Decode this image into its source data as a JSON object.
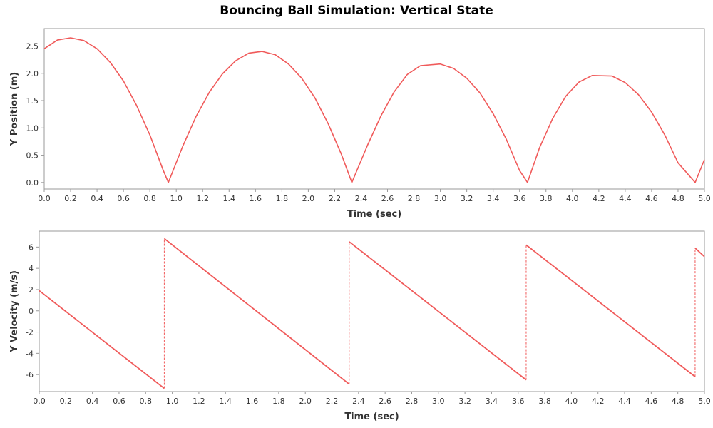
{
  "figure": {
    "title": "Bouncing Ball Simulation: Vertical State"
  },
  "colors": {
    "series": "#f05a5a",
    "frame": "#9a9a9a",
    "background": "#ffffff"
  },
  "chart_data": [
    {
      "type": "line",
      "title": "Bouncing Ball Simulation: Vertical State",
      "xlabel": "Time (sec)",
      "ylabel": "Y Position (m)",
      "xlim": [
        0,
        5.0
      ],
      "ylim": [
        -0.12,
        2.82
      ],
      "grid": false,
      "x_ticks": [
        "0.0",
        "0.2",
        "0.4",
        "0.6",
        "0.8",
        "1.0",
        "1.2",
        "1.4",
        "1.6",
        "1.8",
        "2.0",
        "2.2",
        "2.4",
        "2.6",
        "2.8",
        "3.0",
        "3.2",
        "3.4",
        "3.6",
        "3.8",
        "4.0",
        "4.2",
        "4.4",
        "4.6",
        "4.8",
        "5.0"
      ],
      "y_ticks": [
        "0.0",
        "0.5",
        "1.0",
        "1.5",
        "2.0",
        "2.5"
      ],
      "series": [
        {
          "x": [
            0.0,
            0.1,
            0.2,
            0.3,
            0.4,
            0.5,
            0.6,
            0.7,
            0.8,
            0.9,
            0.94,
            1.05,
            1.15,
            1.25,
            1.35,
            1.45,
            1.55,
            1.65,
            1.75,
            1.85,
            1.95,
            2.05,
            2.15,
            2.25,
            2.33,
            2.45,
            2.55,
            2.65,
            2.75,
            2.85,
            3.0,
            3.1,
            3.2,
            3.3,
            3.4,
            3.5,
            3.6,
            3.66,
            3.75,
            3.85,
            3.95,
            4.05,
            4.15,
            4.3,
            4.4,
            4.5,
            4.6,
            4.7,
            4.8,
            4.93,
            5.0
          ],
          "y": [
            2.45,
            2.61,
            2.65,
            2.6,
            2.45,
            2.2,
            1.86,
            1.41,
            0.87,
            0.23,
            0.0,
            0.67,
            1.21,
            1.65,
            1.99,
            2.23,
            2.37,
            2.4,
            2.34,
            2.17,
            1.91,
            1.55,
            1.08,
            0.52,
            0.0,
            0.69,
            1.22,
            1.66,
            1.98,
            2.14,
            2.17,
            2.09,
            1.91,
            1.64,
            1.26,
            0.79,
            0.22,
            0.0,
            0.63,
            1.17,
            1.58,
            1.84,
            1.96,
            1.95,
            1.83,
            1.61,
            1.29,
            0.87,
            0.36,
            0.0,
            0.42
          ]
        }
      ]
    },
    {
      "type": "line",
      "xlabel": "Time (sec)",
      "ylabel": "Y Velocity (m/s)",
      "xlim": [
        0,
        5.0
      ],
      "ylim": [
        -7.6,
        7.5
      ],
      "grid": false,
      "x_ticks": [
        "0.0",
        "0.2",
        "0.4",
        "0.6",
        "0.8",
        "1.0",
        "1.2",
        "1.4",
        "1.6",
        "1.8",
        "2.0",
        "2.2",
        "2.4",
        "2.6",
        "2.8",
        "3.0",
        "3.2",
        "3.4",
        "3.6",
        "3.8",
        "4.0",
        "4.2",
        "4.4",
        "4.6",
        "4.8",
        "5.0"
      ],
      "y_ticks": [
        "-6",
        "-4",
        "-2",
        "0",
        "2",
        "4",
        "6"
      ],
      "series": [
        {
          "x": [
            0.0,
            0.94,
            0.94,
            2.33,
            2.33,
            3.66,
            3.66,
            4.93,
            4.93,
            5.0
          ],
          "y": [
            1.9,
            -7.3,
            6.8,
            -6.9,
            6.5,
            -6.5,
            6.2,
            -6.2,
            5.9,
            5.1
          ]
        }
      ],
      "bounce_jumps": [
        {
          "x": 0.94,
          "from": -7.3,
          "to": 6.8
        },
        {
          "x": 2.33,
          "from": -6.9,
          "to": 6.5
        },
        {
          "x": 3.66,
          "from": -6.5,
          "to": 6.2
        },
        {
          "x": 4.93,
          "from": -6.2,
          "to": 5.9
        }
      ]
    }
  ]
}
